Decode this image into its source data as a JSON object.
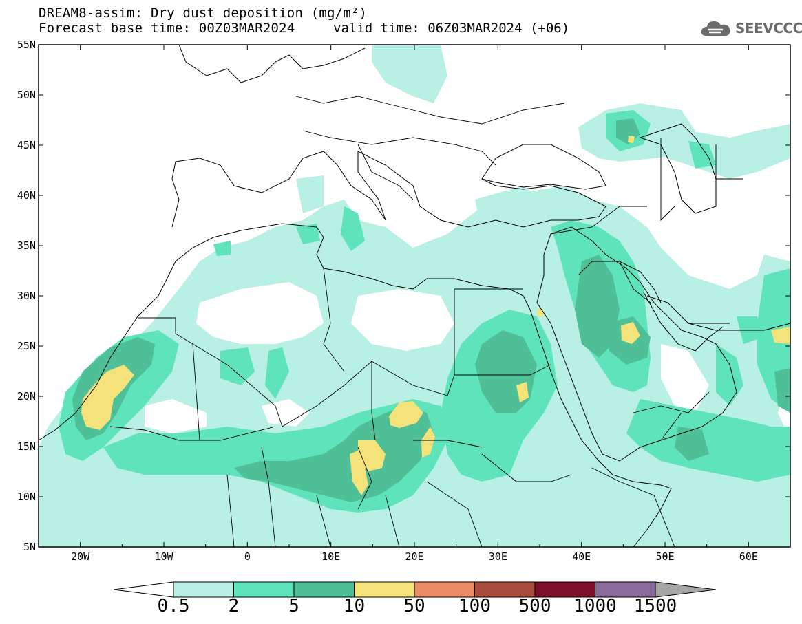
{
  "header": {
    "title_line1": "DREAM8-assim: Dry dust deposition (mg/m²)",
    "title_line2": "Forecast base time: 00Z03MAR2024",
    "valid_time": "valid time: 06Z03MAR2024 (+06)",
    "logo_text": "SEEVCCC",
    "logo_icon": "cloud-logo-icon"
  },
  "map": {
    "lon_range": [
      -25,
      65
    ],
    "lat_range": [
      5,
      55
    ],
    "lat_labels": [
      "55N",
      "50N",
      "45N",
      "40N",
      "35N",
      "30N",
      "25N",
      "20N",
      "15N",
      "10N",
      "5N"
    ],
    "lon_labels": [
      "20W",
      "10W",
      "0",
      "10E",
      "20E",
      "30E",
      "40E",
      "50E",
      "60E"
    ]
  },
  "colorbar": {
    "labels": [
      "0.5",
      "2",
      "5",
      "10",
      "50",
      "100",
      "500",
      "1000",
      "1500"
    ],
    "colors": [
      "#b9f0e4",
      "#5ee3bb",
      "#4fbf98",
      "#f4e27a",
      "#ea8c65",
      "#a84c3e",
      "#7c1028",
      "#8a6a9a",
      "#a6a6a6"
    ],
    "under_color": "#ffffff"
  }
}
